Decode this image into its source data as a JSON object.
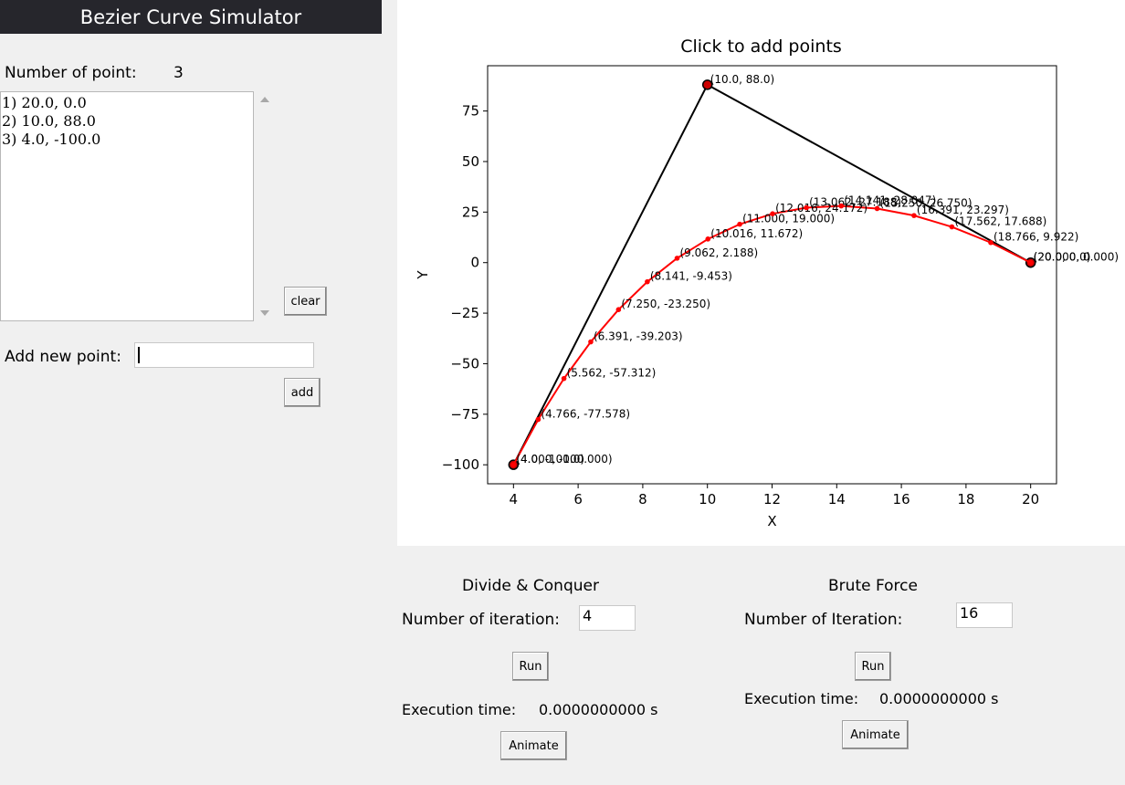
{
  "app": {
    "title": "Bezier Curve Simulator"
  },
  "sidebar": {
    "npoints_label": "Number of point:",
    "npoints_value": "3",
    "points": [
      "1) 20.0, 0.0",
      "2) 10.0, 88.0",
      "3) 4.0, -100.0"
    ],
    "clear_label": "clear",
    "add_label": "Add new point:",
    "add_value": "",
    "add_button": "add"
  },
  "plot": {
    "title": "Click to add points",
    "xlabel": "X",
    "ylabel": "Y"
  },
  "chart_data": {
    "type": "line",
    "title": "Click to add points",
    "xlabel": "X",
    "ylabel": "Y",
    "xlim": [
      3.2,
      20.8
    ],
    "ylim": [
      -109.4,
      97.4
    ],
    "xticks": [
      4,
      6,
      8,
      10,
      12,
      14,
      16,
      18,
      20
    ],
    "yticks": [
      -100,
      -75,
      -50,
      -25,
      0,
      25,
      50,
      75
    ],
    "grid": false,
    "series": [
      {
        "role": "control",
        "color": "#000000",
        "points": [
          [
            20.0,
            0.0
          ],
          [
            10.0,
            88.0
          ],
          [
            4.0,
            -100.0
          ]
        ],
        "labels": [
          "(20.0, 0.0)",
          "(10.0, 88.0)",
          "(4.0, -100.0)"
        ]
      },
      {
        "role": "curve",
        "color": "#ff0000",
        "points": [
          [
            4.0,
            -100.0
          ],
          [
            4.766,
            -77.578
          ],
          [
            5.562,
            -57.312
          ],
          [
            6.391,
            -39.203
          ],
          [
            7.25,
            -23.25
          ],
          [
            8.141,
            -9.453
          ],
          [
            9.062,
            2.188
          ],
          [
            10.016,
            11.672
          ],
          [
            11.0,
            19.0
          ],
          [
            12.016,
            24.172
          ],
          [
            13.062,
            27.188
          ],
          [
            14.141,
            28.047
          ],
          [
            15.25,
            26.75
          ],
          [
            16.391,
            23.297
          ],
          [
            17.562,
            17.688
          ],
          [
            18.766,
            9.922
          ],
          [
            20.0,
            0.0
          ]
        ],
        "labels": [
          "(4.000, -100.000)",
          "(4.766, -77.578)",
          "(5.562, -57.312)",
          "(6.391, -39.203)",
          "(7.250, -23.250)",
          "(8.141, -9.453)",
          "(9.062, 2.188)",
          "(10.016, 11.672)",
          "(11.000, 19.000)",
          "(12.016, 24.172)",
          "(13.062, 27.188)",
          "(14.141, 28.047)",
          "(15.250, 26.750)",
          "(16.391, 23.297)",
          "(17.562, 17.688)",
          "(18.766, 9.922)",
          "(20.000, 0.000)"
        ]
      }
    ]
  },
  "dc": {
    "title": "Divide & Conquer",
    "iter_label": "Number of iteration:",
    "iter_value": "4",
    "run": "Run",
    "exec_label": "Execution time:",
    "exec_value": "0.0000000000 s",
    "animate": "Animate"
  },
  "bf": {
    "title": "Brute Force",
    "iter_label": "Number of Iteration:",
    "iter_value": "16",
    "run": "Run",
    "exec_label": "Execution time:",
    "exec_value": "0.0000000000 s",
    "animate": "Animate"
  }
}
